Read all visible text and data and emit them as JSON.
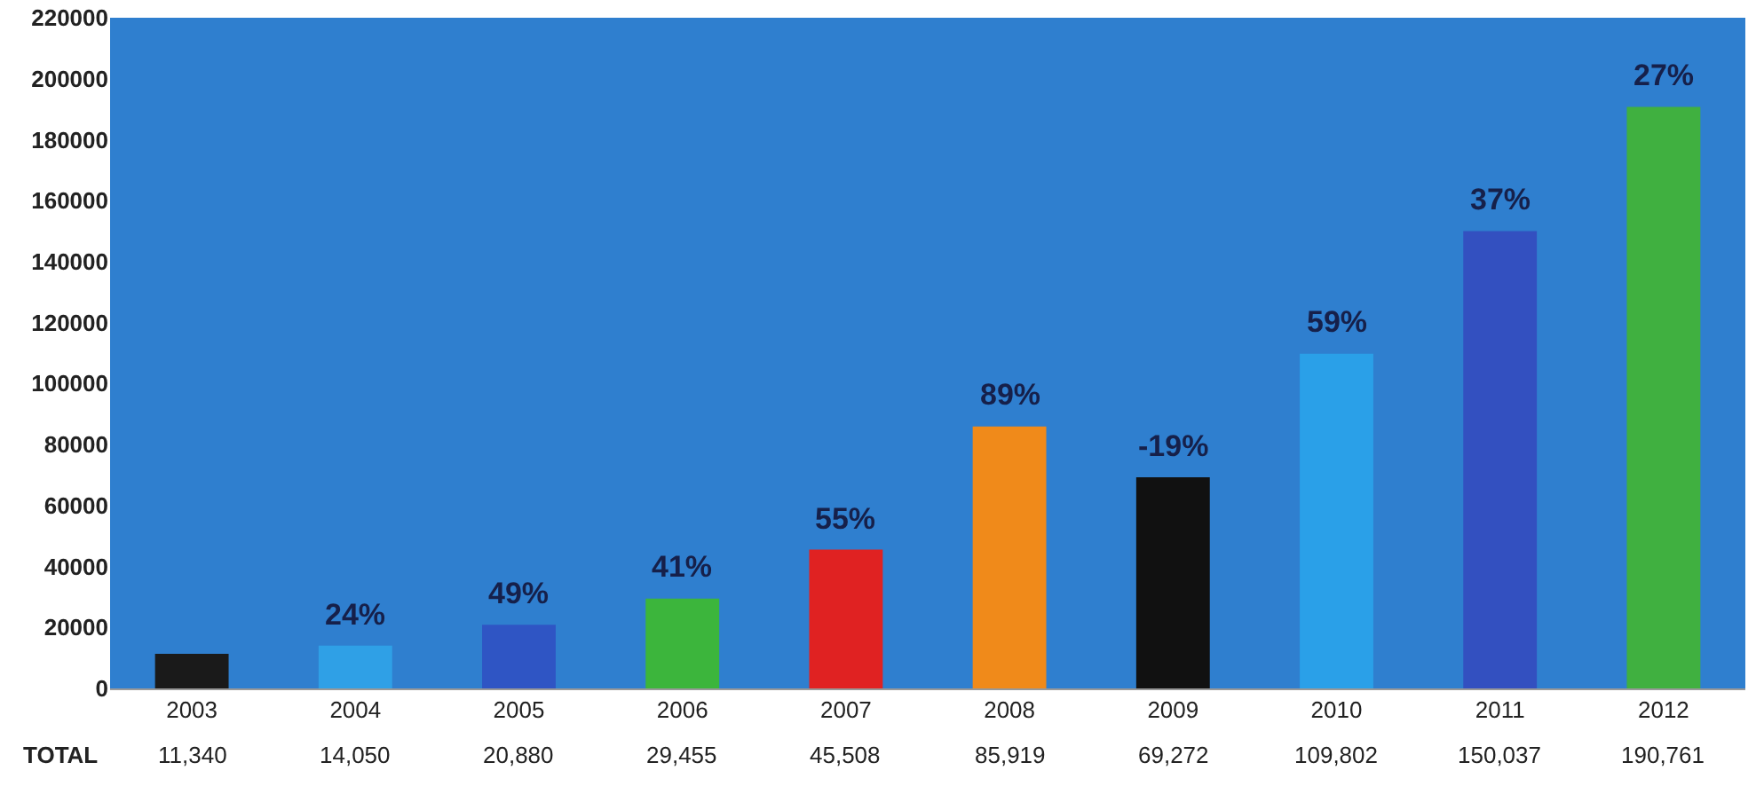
{
  "chart_data": {
    "type": "bar",
    "categories": [
      "2003",
      "2004",
      "2005",
      "2006",
      "2007",
      "2008",
      "2009",
      "2010",
      "2011",
      "2012"
    ],
    "values": [
      11340,
      14050,
      20880,
      29455,
      45508,
      85919,
      69272,
      109802,
      150037,
      190761
    ],
    "colors": [
      "#1a1a1a",
      "#2fa0e6",
      "#2f55c4",
      "#3cb53c",
      "#e02222",
      "#f08a1a",
      "#111111",
      "#2aa0e8",
      "#3350c0",
      "#40b040"
    ],
    "value_labels": [
      "11,340",
      "14,050",
      "20,880",
      "29,455",
      "45,508",
      "85,919",
      "69,272",
      "109,802",
      "150,037",
      "190,761"
    ],
    "ylim": [
      0,
      220000
    ],
    "yticks": [
      0,
      20000,
      40000,
      60000,
      80000,
      100000,
      120000,
      140000,
      160000,
      180000,
      200000,
      220000
    ],
    "annotations": [
      "TOTAL",
      {
        "text": "24%",
        "x": "2004",
        "y": 14050
      },
      {
        "text": "49%",
        "x": "2005",
        "y": 20880
      },
      {
        "text": "41%",
        "x": "2006",
        "y": 29455
      },
      {
        "text": "55%",
        "x": "2007",
        "y": 45508
      },
      {
        "text": "89%",
        "x": "2008",
        "y": 85919
      },
      {
        "text": "-19%",
        "x": "2009",
        "y": 69272
      },
      {
        "text": "59%",
        "x": "2010",
        "y": 109802
      },
      {
        "text": "37%",
        "x": "2011",
        "y": 150037
      },
      {
        "text": "27%",
        "x": "2012",
        "y": 190761
      }
    ]
  }
}
